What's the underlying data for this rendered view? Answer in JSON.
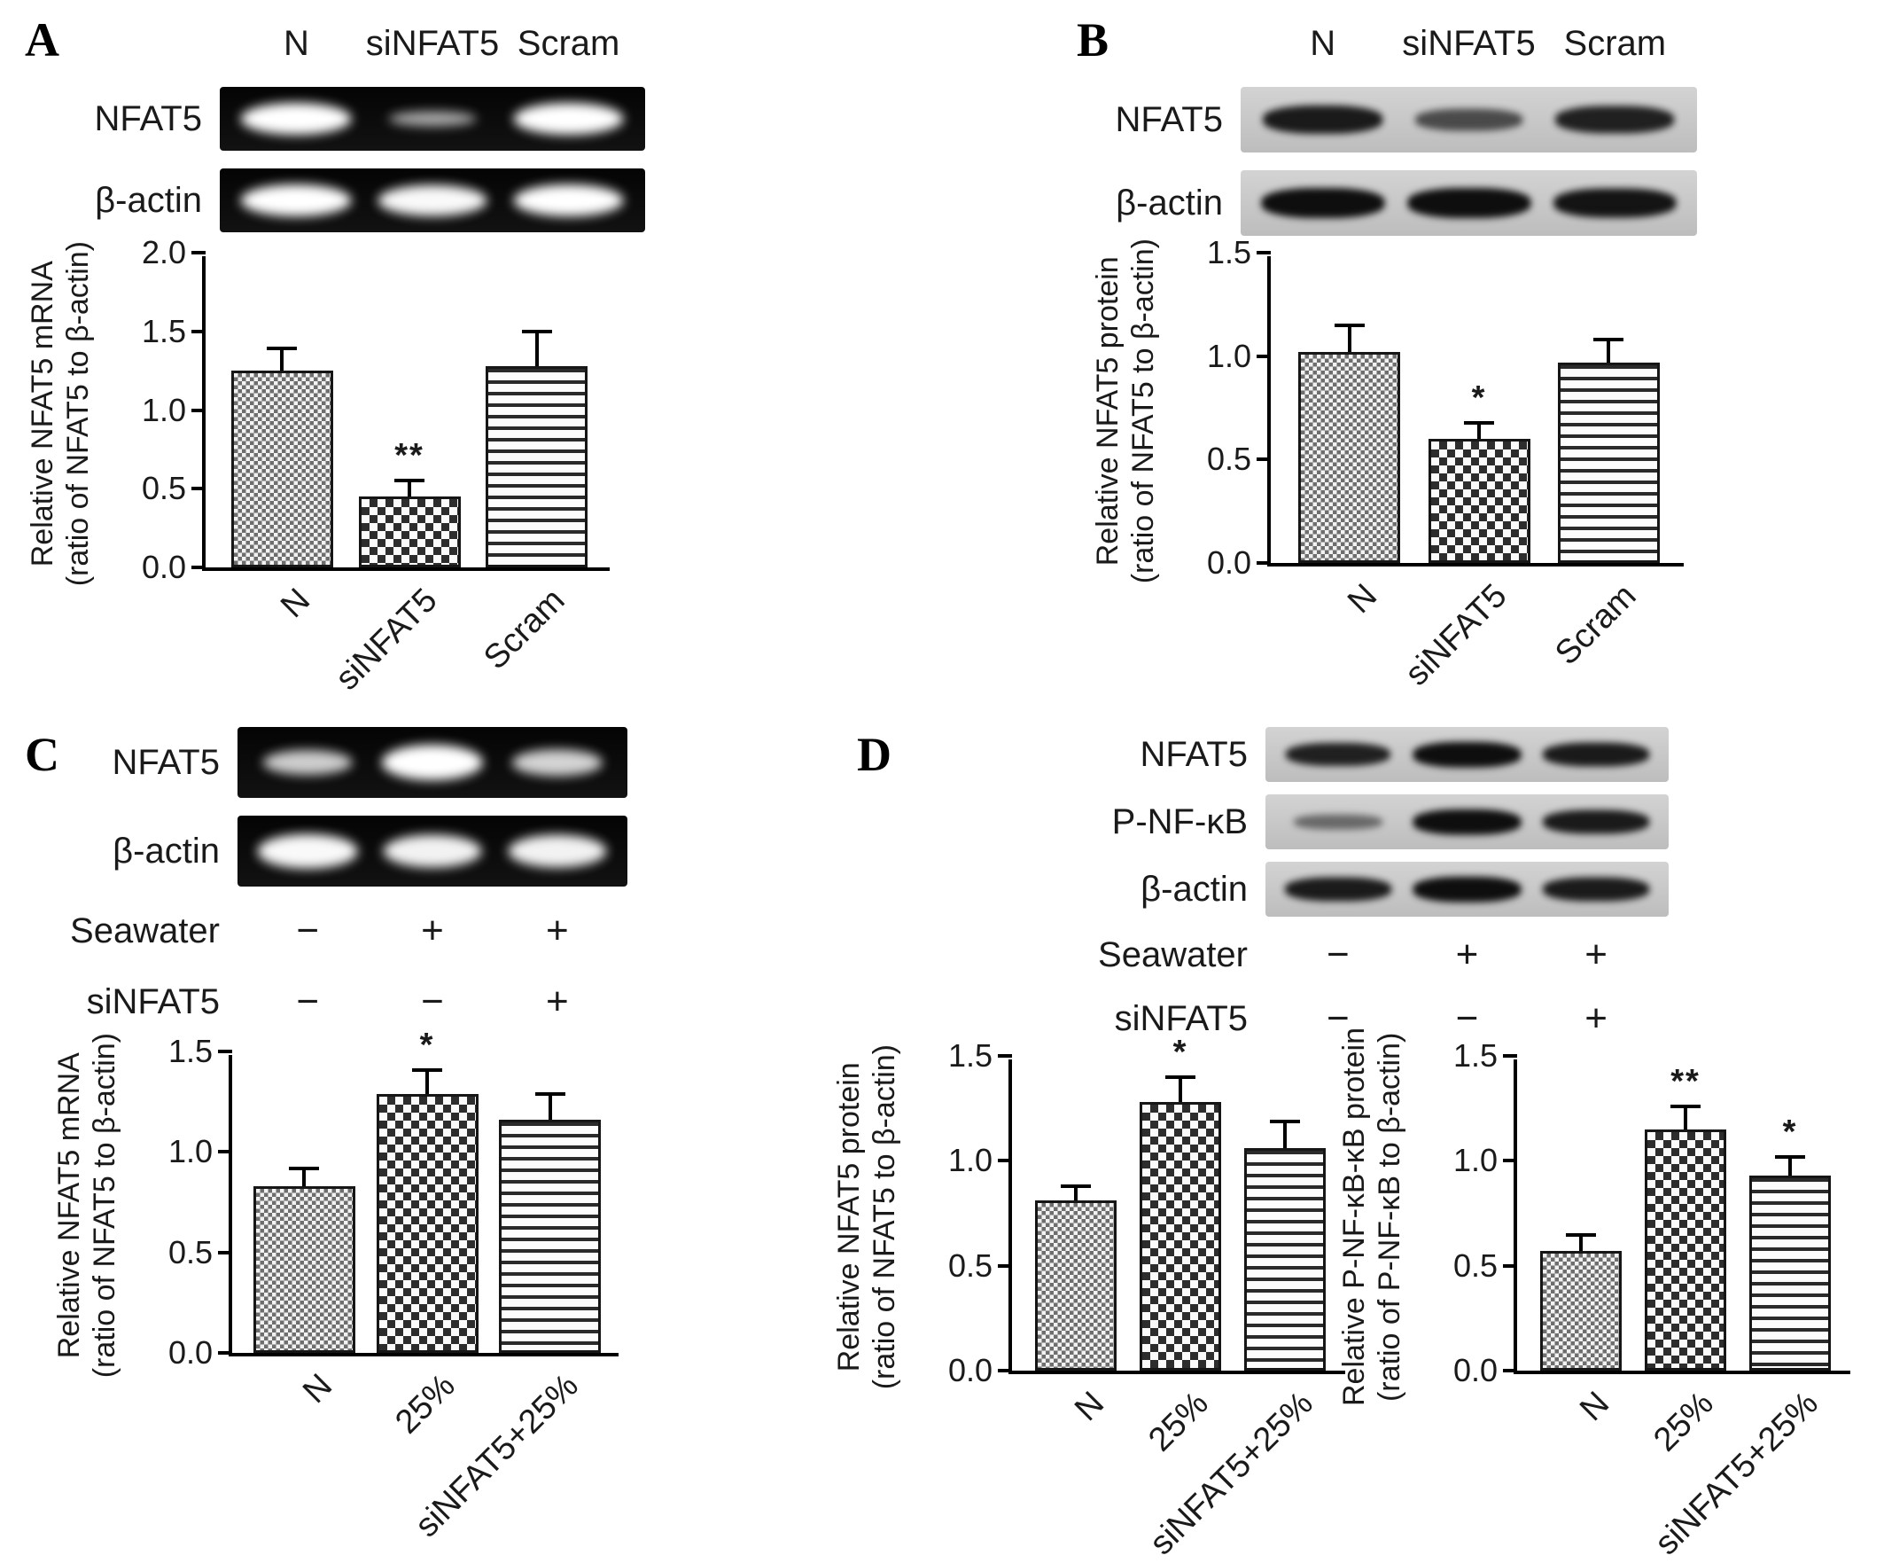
{
  "panels": {
    "A": {
      "label": "A",
      "lane_labels": [
        "N",
        "siNFAT5",
        "Scram"
      ],
      "gel_style": "dark",
      "gel_rows": [
        {
          "label": "NFAT5",
          "intensities": [
            1.0,
            0.3,
            1.0
          ]
        },
        {
          "label": "β-actin",
          "intensities": [
            1.0,
            0.95,
            1.0
          ]
        }
      ]
    },
    "B": {
      "label": "B",
      "lane_labels": [
        "N",
        "siNFAT5",
        "Scram"
      ],
      "gel_style": "light",
      "gel_rows": [
        {
          "label": "NFAT5",
          "intensities": [
            0.9,
            0.5,
            0.85
          ]
        },
        {
          "label": "β-actin",
          "intensities": [
            1.0,
            1.0,
            0.95
          ]
        }
      ]
    },
    "C": {
      "label": "C",
      "gel_style": "dark",
      "gel_rows": [
        {
          "label": "NFAT5",
          "intensities": [
            0.6,
            1.0,
            0.65
          ]
        },
        {
          "label": "β-actin",
          "intensities": [
            0.95,
            0.9,
            0.9
          ]
        }
      ],
      "conditions": [
        {
          "label": "Seawater",
          "values": [
            "−",
            "+",
            "+"
          ]
        },
        {
          "label": "siNFAT5",
          "values": [
            "−",
            "−",
            "+"
          ]
        }
      ]
    },
    "D": {
      "label": "D",
      "gel_style": "light",
      "gel_rows": [
        {
          "label": "NFAT5",
          "intensities": [
            0.85,
            1.0,
            0.9
          ]
        },
        {
          "label": "P-NF-κB",
          "intensities": [
            0.25,
            1.0,
            0.9
          ]
        },
        {
          "label": "β-actin",
          "intensities": [
            0.9,
            1.0,
            0.9
          ]
        }
      ],
      "conditions": [
        {
          "label": "Seawater",
          "values": [
            "−",
            "+",
            "+"
          ]
        },
        {
          "label": "siNFAT5",
          "values": [
            "−",
            "−",
            "+"
          ]
        }
      ]
    }
  },
  "chart_data": [
    {
      "id": "chart-A",
      "type": "bar",
      "title": "",
      "xlabel": "",
      "ylabel": "Relative NFAT5 mRNA\n(ratio of NFAT5 to β-actin)",
      "categories": [
        "N",
        "siNFAT5",
        "Scram"
      ],
      "values": [
        1.25,
        0.45,
        1.28
      ],
      "errors": [
        0.13,
        0.09,
        0.21
      ],
      "significance": [
        "",
        "**",
        ""
      ],
      "yticks": [
        0.0,
        0.5,
        1.0,
        1.5,
        2.0
      ],
      "ylim": [
        0,
        2.0
      ],
      "grid": false,
      "patterns": [
        "checker-fine",
        "checker",
        "hlines"
      ]
    },
    {
      "id": "chart-B",
      "type": "bar",
      "title": "",
      "xlabel": "",
      "ylabel": "Relative NFAT5 protein\n(ratio of NFAT5 to β-actin)",
      "categories": [
        "N",
        "siNFAT5",
        "Scram"
      ],
      "values": [
        1.02,
        0.6,
        0.97
      ],
      "errors": [
        0.12,
        0.07,
        0.1
      ],
      "significance": [
        "",
        "*",
        ""
      ],
      "yticks": [
        0.0,
        0.5,
        1.0,
        1.5
      ],
      "ylim": [
        0,
        1.5
      ],
      "grid": false,
      "patterns": [
        "checker-fine",
        "checker",
        "hlines"
      ]
    },
    {
      "id": "chart-C",
      "type": "bar",
      "title": "",
      "xlabel": "",
      "ylabel": "Relative NFAT5 mRNA\n(ratio of NFAT5 to β-actin)",
      "categories": [
        "N",
        "25%",
        "siNFAT5+25%"
      ],
      "values": [
        0.83,
        1.29,
        1.16
      ],
      "errors": [
        0.08,
        0.11,
        0.12
      ],
      "significance": [
        "",
        "*",
        ""
      ],
      "yticks": [
        0.0,
        0.5,
        1.0,
        1.5
      ],
      "ylim": [
        0,
        1.5
      ],
      "grid": false,
      "patterns": [
        "checker-fine",
        "checker",
        "hlines"
      ]
    },
    {
      "id": "chart-D1",
      "type": "bar",
      "title": "",
      "xlabel": "",
      "ylabel": "Relative NFAT5 protein\n(ratio of NFAT5 to β-actin)",
      "categories": [
        "N",
        "25%",
        "siNFAT5+25%"
      ],
      "values": [
        0.81,
        1.28,
        1.06
      ],
      "errors": [
        0.06,
        0.11,
        0.12
      ],
      "significance": [
        "",
        "*",
        ""
      ],
      "yticks": [
        0.0,
        0.5,
        1.0,
        1.5
      ],
      "ylim": [
        0,
        1.5
      ],
      "grid": false,
      "patterns": [
        "checker-fine",
        "checker",
        "hlines"
      ]
    },
    {
      "id": "chart-D2",
      "type": "bar",
      "title": "",
      "xlabel": "",
      "ylabel": "Relative P-NF-κB-κB protein\n(ratio of P-NF-κB to β-actin)",
      "categories": [
        "N",
        "25%",
        "siNFAT5+25%"
      ],
      "values": [
        0.57,
        1.15,
        0.93
      ],
      "errors": [
        0.07,
        0.1,
        0.08
      ],
      "significance": [
        "",
        "**",
        "*"
      ],
      "yticks": [
        0.0,
        0.5,
        1.0,
        1.5
      ],
      "ylim": [
        0,
        1.5
      ],
      "grid": false,
      "patterns": [
        "checker-fine",
        "checker",
        "hlines"
      ]
    }
  ]
}
